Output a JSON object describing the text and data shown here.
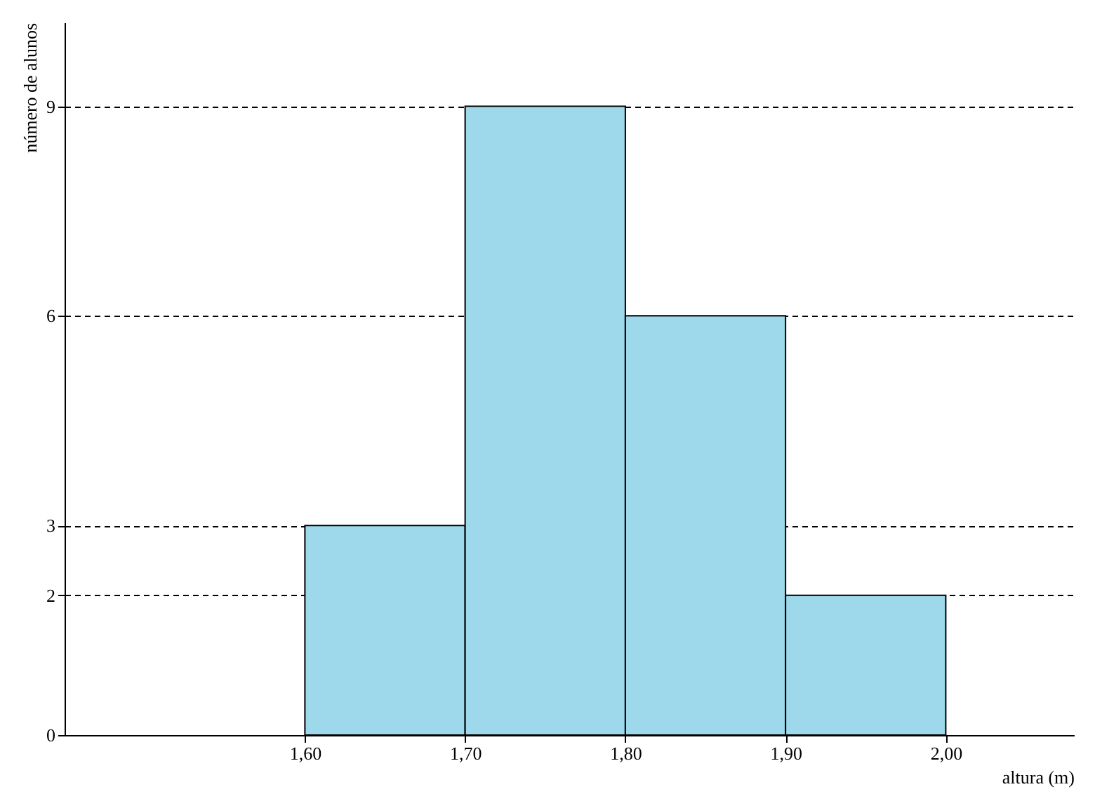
{
  "chart_data": {
    "type": "histogram",
    "xlabel": "altura (m)",
    "ylabel": "número de alunos",
    "bins": [
      1.6,
      1.7,
      1.8,
      1.9,
      2.0
    ],
    "values": [
      3,
      9,
      6,
      2
    ],
    "color": "#9dd9ea",
    "xlim": [
      1.45,
      2.08
    ],
    "xticks": [
      {
        "value": 1.6,
        "label": "1,60"
      },
      {
        "value": 1.7,
        "label": "1,70"
      },
      {
        "value": 1.8,
        "label": "1,80"
      },
      {
        "value": 1.9,
        "label": "1,90"
      },
      {
        "value": 2.0,
        "label": "2,00"
      }
    ],
    "ylim": [
      0,
      10.2
    ],
    "yticks": [
      0,
      2,
      3,
      6,
      9
    ],
    "grid": "y"
  }
}
